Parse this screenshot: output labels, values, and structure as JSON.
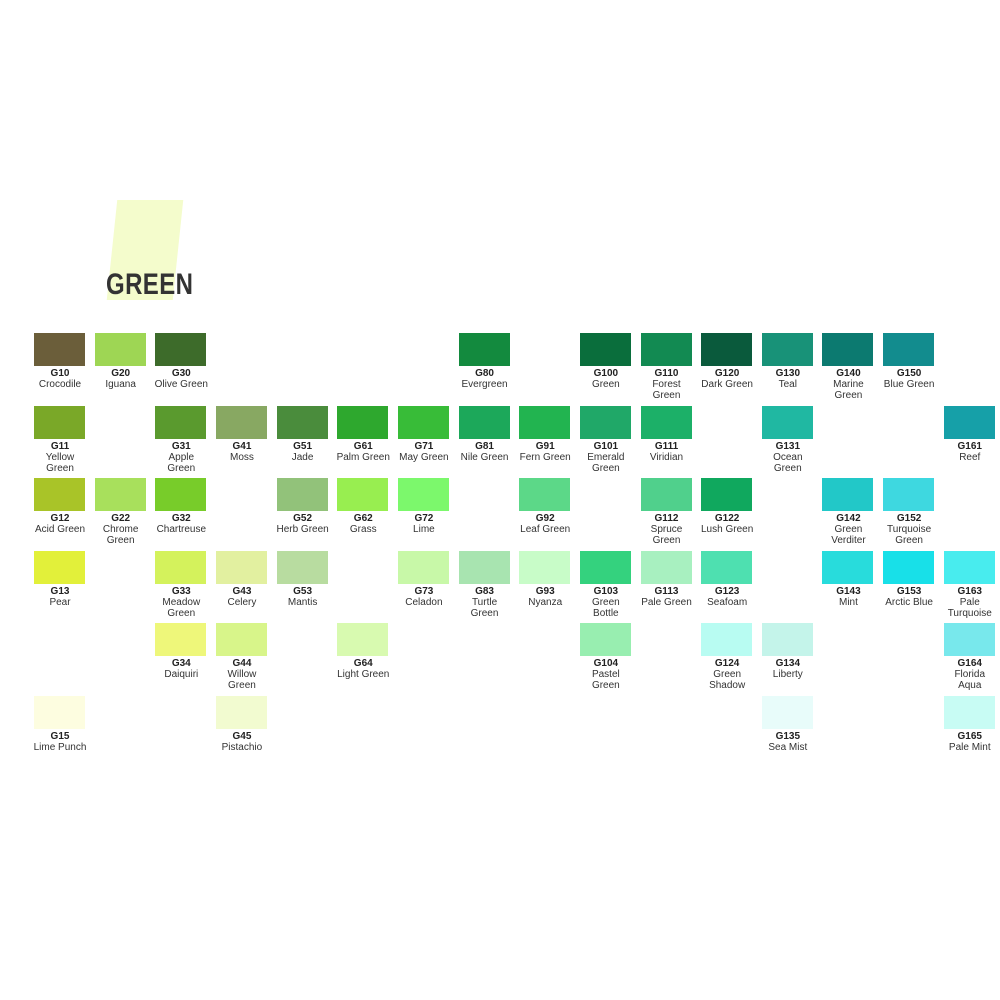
{
  "header": {
    "title": "GREEN"
  },
  "columns": [
    [
      {
        "code": "G10",
        "name": "Crocodile",
        "color": "#6b5e3a"
      },
      {
        "code": "G11",
        "name": "Yellow Green",
        "color": "#7aa828"
      },
      {
        "code": "G12",
        "name": "Acid Green",
        "color": "#a9c428"
      },
      {
        "code": "G13",
        "name": "Pear",
        "color": "#e2f03a"
      },
      null,
      {
        "code": "G15",
        "name": "Lime Punch",
        "color": "#fdfde0"
      }
    ],
    [
      {
        "code": "G20",
        "name": "Iguana",
        "color": "#9ed654"
      },
      null,
      {
        "code": "G22",
        "name": "Chrome Green",
        "color": "#a8e05c"
      },
      null,
      null,
      null
    ],
    [
      {
        "code": "G30",
        "name": "Olive Green",
        "color": "#3d6b2a"
      },
      {
        "code": "G31",
        "name": "Apple Green",
        "color": "#5a9a2e"
      },
      {
        "code": "G32",
        "name": "Chartreuse",
        "color": "#78cc2a"
      },
      {
        "code": "G33",
        "name": "Meadow Green",
        "color": "#d4f25c"
      },
      {
        "code": "G34",
        "name": "Daiquiri",
        "color": "#eef77a"
      },
      null
    ],
    [
      null,
      {
        "code": "G41",
        "name": "Moss",
        "color": "#88a862"
      },
      null,
      {
        "code": "G43",
        "name": "Celery",
        "color": "#e2f0a0"
      },
      {
        "code": "G44",
        "name": "Willow Green",
        "color": "#d8f58a"
      },
      {
        "code": "G45",
        "name": "Pistachio",
        "color": "#f2fbd0"
      }
    ],
    [
      null,
      {
        "code": "G51",
        "name": "Jade",
        "color": "#4a8c3c"
      },
      {
        "code": "G52",
        "name": "Herb Green",
        "color": "#92c27a"
      },
      {
        "code": "G53",
        "name": "Mantis",
        "color": "#b8dca0"
      },
      null,
      null
    ],
    [
      null,
      {
        "code": "G61",
        "name": "Palm Green",
        "color": "#2ea82e"
      },
      {
        "code": "G62",
        "name": "Grass",
        "color": "#98ee50"
      },
      null,
      {
        "code": "G64",
        "name": "Light Green",
        "color": "#d8fab0"
      },
      null
    ],
    [
      null,
      {
        "code": "G71",
        "name": "May Green",
        "color": "#38bc38"
      },
      {
        "code": "G72",
        "name": "Lime",
        "color": "#7cf86c"
      },
      {
        "code": "G73",
        "name": "Celadon",
        "color": "#c8f8a8"
      },
      null,
      null
    ],
    [
      {
        "code": "G80",
        "name": "Evergreen",
        "color": "#138a3e"
      },
      {
        "code": "G81",
        "name": "Nile Green",
        "color": "#1ca85a"
      },
      null,
      {
        "code": "G83",
        "name": "Turtle Green",
        "color": "#a8e4b0"
      },
      null,
      null
    ],
    [
      null,
      {
        "code": "G91",
        "name": "Fern Green",
        "color": "#22b450"
      },
      {
        "code": "G92",
        "name": "Leaf Green",
        "color": "#5cd888"
      },
      {
        "code": "G93",
        "name": "Nyanza",
        "color": "#c8fcc8"
      },
      null,
      null
    ],
    [
      {
        "code": "G100",
        "name": "Green",
        "color": "#0a6e3c"
      },
      {
        "code": "G101",
        "name": "Emerald Green",
        "color": "#20a868"
      },
      null,
      {
        "code": "G103",
        "name": "Green Bottle",
        "color": "#34d27e"
      },
      {
        "code": "G104",
        "name": "Pastel Green",
        "color": "#98eeb0"
      },
      null
    ],
    [
      {
        "code": "G110",
        "name": "Forest Green",
        "color": "#128a52"
      },
      {
        "code": "G111",
        "name": "Viridian",
        "color": "#1cb068"
      },
      {
        "code": "G112",
        "name": "Spruce Green",
        "color": "#50d08c"
      },
      {
        "code": "G113",
        "name": "Pale Green",
        "color": "#a8f0c0"
      },
      null,
      null
    ],
    [
      {
        "code": "G120",
        "name": "Dark Green",
        "color": "#0a5a3c"
      },
      null,
      {
        "code": "G122",
        "name": "Lush Green",
        "color": "#10a85e"
      },
      {
        "code": "G123",
        "name": "Seafoam",
        "color": "#4ee0b0"
      },
      {
        "code": "G124",
        "name": "Green Shadow",
        "color": "#b8fcf2"
      },
      null
    ],
    [
      {
        "code": "G130",
        "name": "Teal",
        "color": "#189278"
      },
      {
        "code": "G131",
        "name": "Ocean Green",
        "color": "#20b8a2"
      },
      null,
      null,
      {
        "code": "G134",
        "name": "Liberty",
        "color": "#c4f4ea"
      },
      {
        "code": "G135",
        "name": "Sea Mist",
        "color": "#e8fcfa"
      }
    ],
    [
      {
        "code": "G140",
        "name": "Marine Green",
        "color": "#0c7a70"
      },
      null,
      {
        "code": "G142",
        "name": "Green Verditer",
        "color": "#22c8c8"
      },
      {
        "code": "G143",
        "name": "Mint",
        "color": "#28dcdc"
      },
      null,
      null
    ],
    [
      {
        "code": "G150",
        "name": "Blue Green",
        "color": "#128c8e"
      },
      null,
      {
        "code": "G152",
        "name": "Turquoise Green",
        "color": "#3ed8e0"
      },
      {
        "code": "G153",
        "name": "Arctic Blue",
        "color": "#18e0e8"
      },
      null,
      null
    ],
    [
      null,
      {
        "code": "G161",
        "name": "Reef",
        "color": "#16a0a8"
      },
      null,
      {
        "code": "G163",
        "name": "Pale Turquoise",
        "color": "#48ecee"
      },
      {
        "code": "G164",
        "name": "Florida Aqua",
        "color": "#78e8ec"
      },
      {
        "code": "G165",
        "name": "Pale Mint",
        "color": "#c8fcf4"
      }
    ]
  ]
}
